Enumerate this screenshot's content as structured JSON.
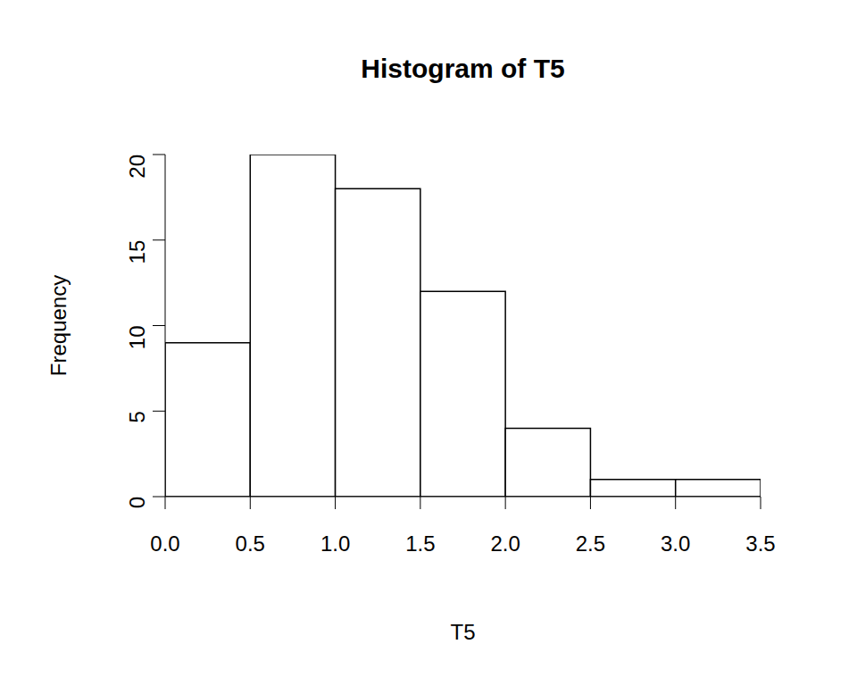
{
  "chart_data": {
    "type": "histogram",
    "title": "Histogram of T5",
    "x_label": "T5",
    "y_label": "Frequency",
    "bins": [
      0,
      0.5,
      1,
      1.5,
      2,
      2.5,
      3,
      3.5
    ],
    "values": [
      9,
      20,
      18,
      12,
      4,
      1,
      1
    ],
    "color": "#ffffff",
    "xlim": [
      0,
      3.5
    ],
    "ylim": [
      0,
      20
    ],
    "xticks": [
      {
        "value": 0,
        "label": "0.0"
      },
      0.5,
      {
        "value": 1,
        "label": "1.0"
      },
      1.5,
      {
        "value": 2,
        "label": "2.0"
      },
      2.5,
      {
        "value": 3,
        "label": "3.0"
      },
      3.5
    ],
    "yticks": [
      0,
      5,
      10,
      15,
      20
    ],
    "grid": false
  }
}
